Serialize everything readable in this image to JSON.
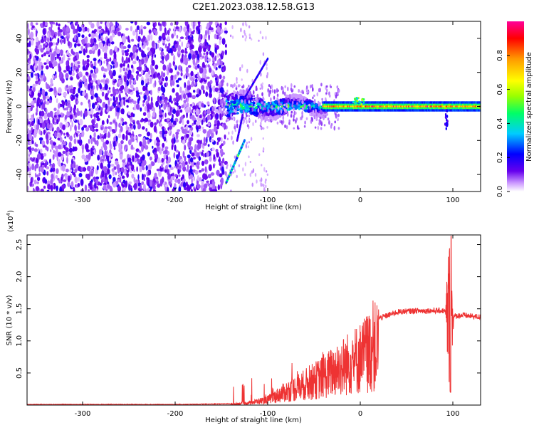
{
  "title": "C2E1.2023.038.12.58.G13",
  "chart_data": [
    {
      "type": "heatmap",
      "name": "spectrogram",
      "xlabel": "Height of straight line (km)",
      "ylabel": "Frequency (Hz)",
      "xlim": [
        -360,
        130
      ],
      "ylim": [
        -50,
        50
      ],
      "xticks": [
        -300,
        -200,
        -100,
        0,
        100
      ],
      "yticks": [
        40,
        20,
        0,
        -20,
        -40
      ],
      "colorbar": {
        "label": "Normalized spectral amplitude",
        "range": [
          0.0,
          1.0
        ],
        "ticks": [
          "0.0",
          "0.2",
          "0.4",
          "0.6",
          "0.8"
        ],
        "colors": [
          "#ffffff",
          "#cc99ff",
          "#6600ee",
          "#0000ff",
          "#00ccff",
          "#00ff66",
          "#99ff00",
          "#ffff00",
          "#ff9900",
          "#ff0000",
          "#ff0099"
        ]
      },
      "features": {
        "noise_region_x": [
          -360,
          -145
        ],
        "transition_region_x": [
          -145,
          -35
        ],
        "signal_frequency_hz": 0,
        "streak_x": [
          -145,
          -125
        ],
        "streak_freq_hz": [
          -45,
          -20
        ],
        "upper_streak_x": [
          -125,
          -100
        ],
        "upper_streak_freq_hz": [
          5,
          28
        ],
        "spike_x": 93
      }
    },
    {
      "type": "line",
      "name": "snr",
      "xlabel": "Height of straight line (km)",
      "ylabel": "SNR (10 * v/v)",
      "y_multiplier": "(x10",
      "y_multiplier_exp": "4",
      "y_multiplier_close": ")",
      "xlim": [
        -360,
        130
      ],
      "ylim": [
        0,
        2.65
      ],
      "xticks": [
        -300,
        -200,
        -100,
        0,
        100
      ],
      "yticks": [
        "0.5",
        "1.0",
        "1.5",
        "2.0",
        "2.5"
      ],
      "line_color": "#ee3333",
      "envelope": {
        "x": [
          -360,
          -200,
          -140,
          -120,
          -100,
          -80,
          -60,
          -40,
          -20,
          0,
          20,
          40,
          60,
          80,
          90,
          96,
          100,
          110,
          130
        ],
        "y": [
          0.01,
          0.01,
          0.02,
          0.05,
          0.12,
          0.3,
          0.45,
          0.62,
          0.85,
          1.05,
          1.35,
          1.45,
          1.47,
          1.47,
          1.47,
          1.4,
          1.38,
          1.4,
          1.37
        ]
      },
      "features": {
        "spike_x": 98,
        "spike_max": 2.63,
        "spike_min": 0.2
      }
    }
  ]
}
